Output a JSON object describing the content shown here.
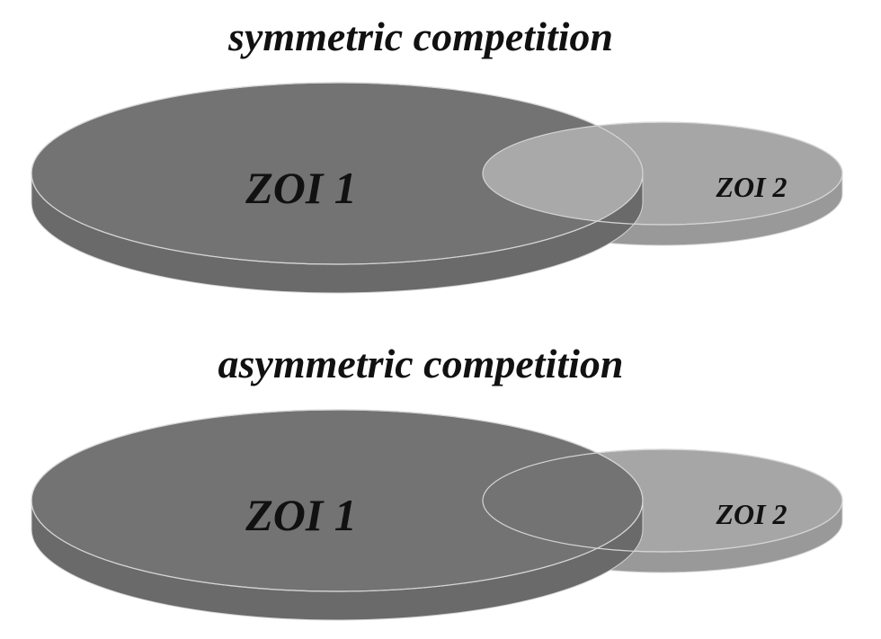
{
  "panels": [
    {
      "title": "symmetric competition",
      "zone_large_label": "ZOI 1",
      "zone_small_label": "ZOI 2",
      "overlap_shared": true
    },
    {
      "title": "asymmetric competition",
      "zone_large_label": "ZOI 1",
      "zone_small_label": "ZOI 2",
      "overlap_shared": false
    }
  ],
  "colors": {
    "zone_large_top": "#737373",
    "zone_large_side": "#6a6a6a",
    "zone_small_top": "#a6a6a6",
    "zone_small_side": "#999999",
    "overlap_shared": "#a9a9a9",
    "outline": "#d4d4d4",
    "text": "#111111"
  }
}
